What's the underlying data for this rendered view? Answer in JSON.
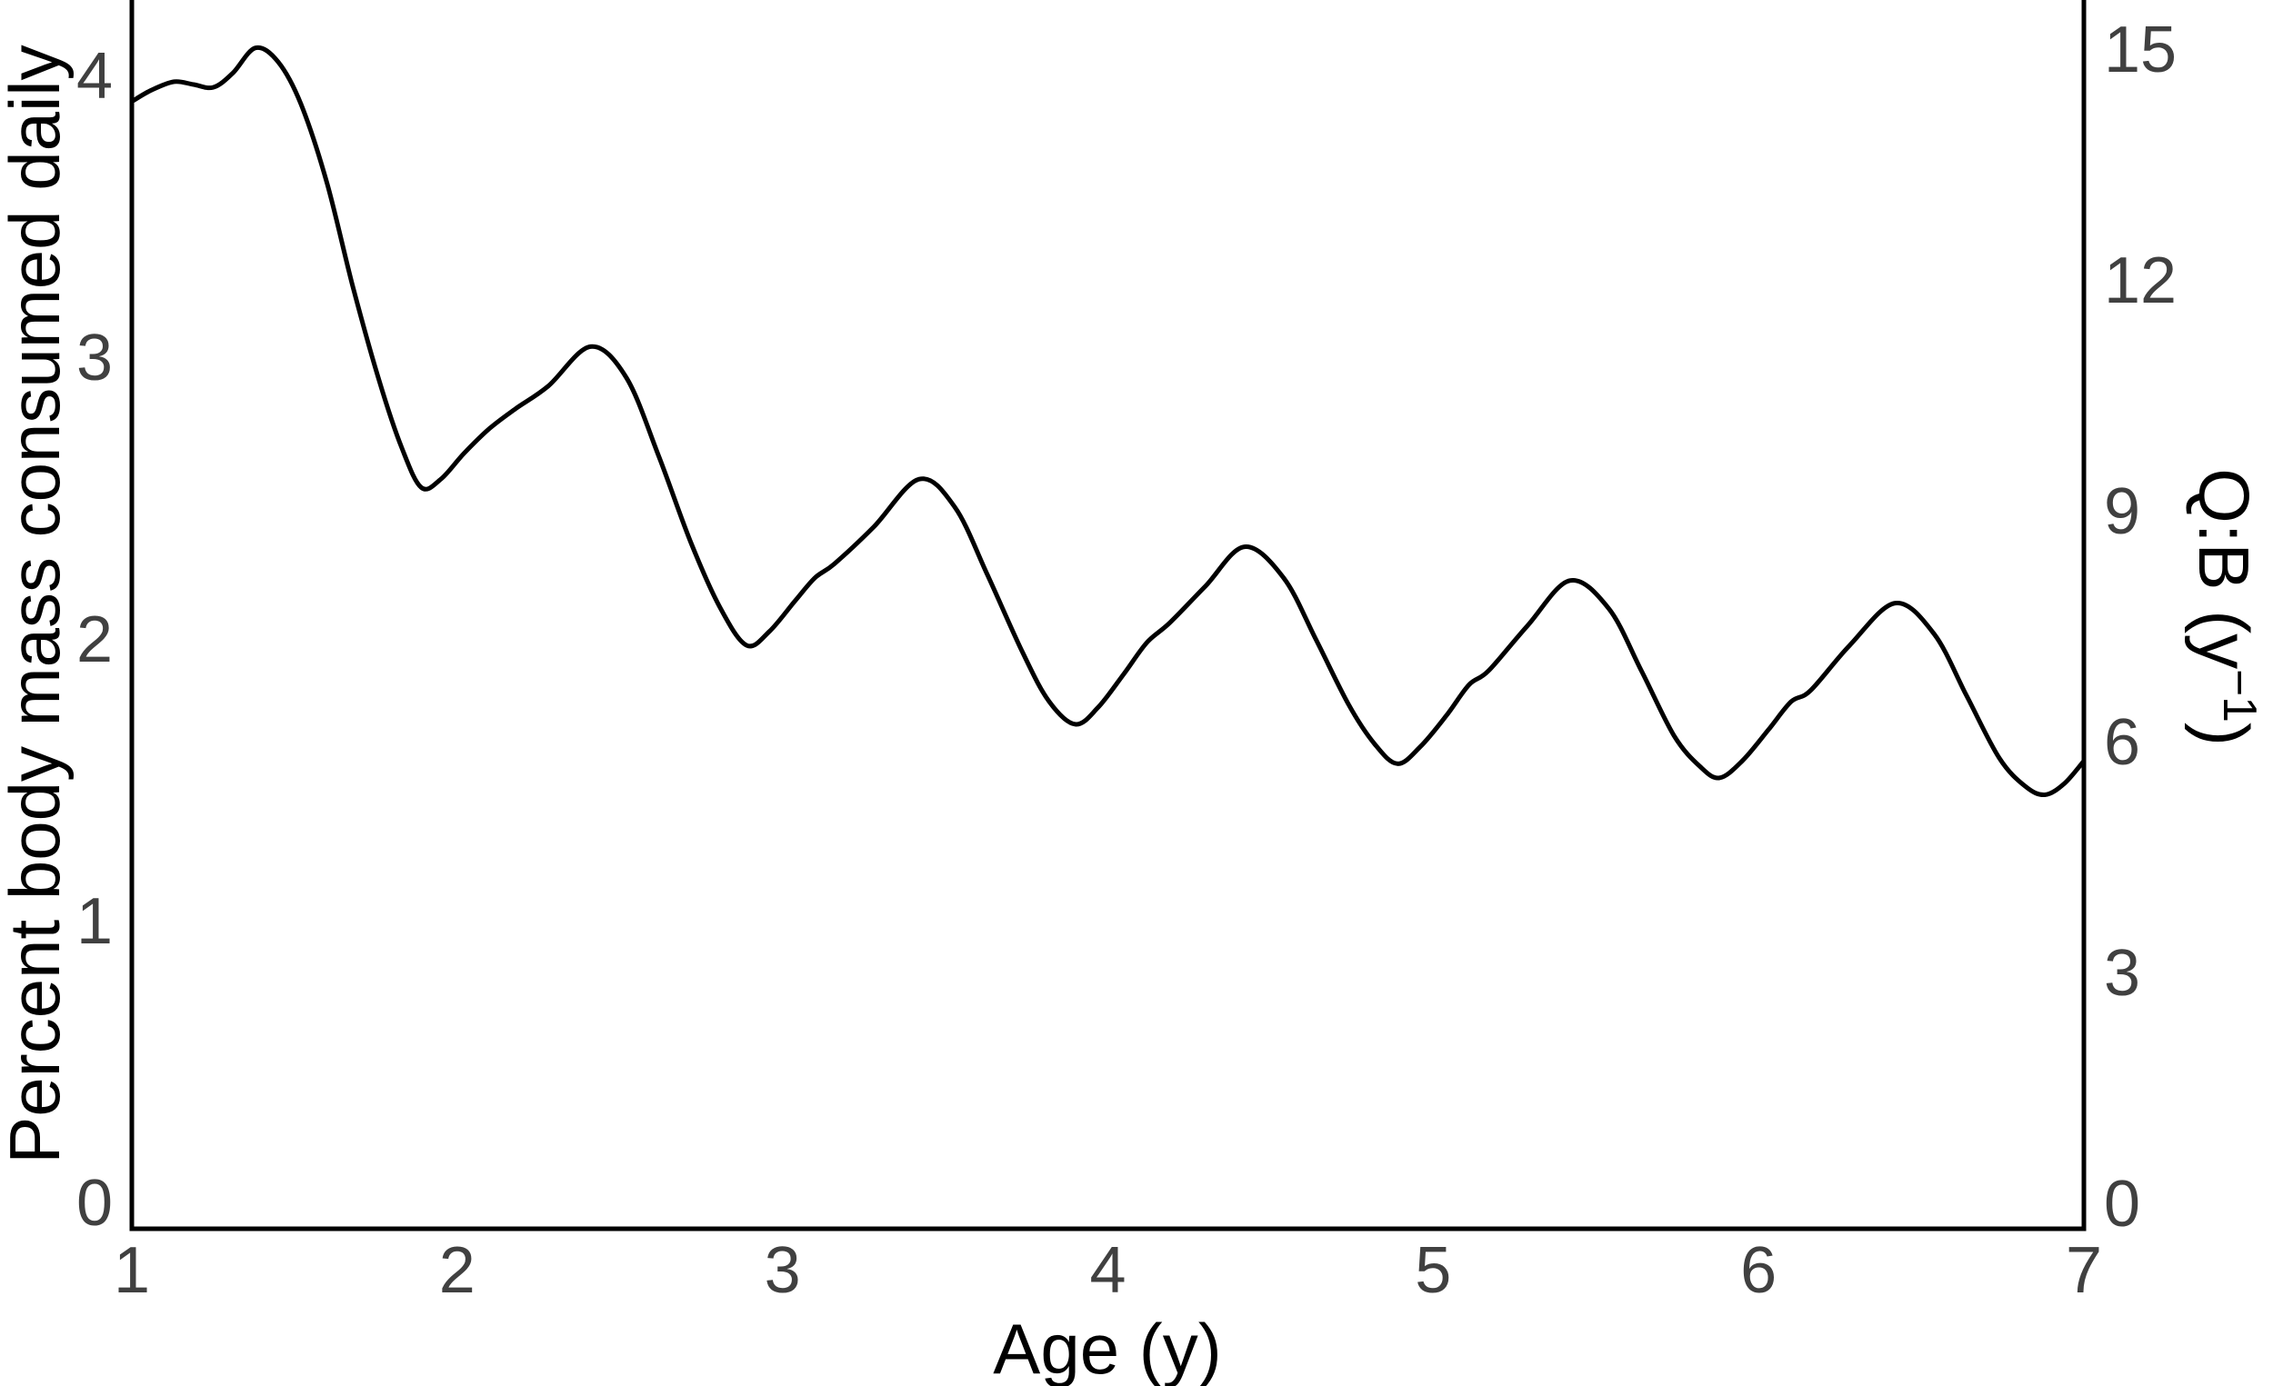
{
  "figure": {
    "background_color": "#ffffff",
    "axis_color": "#000000",
    "curve_color": "#000000",
    "tick_label_color": "#404040",
    "axis_label_color": "#000000"
  },
  "chart_data": {
    "type": "line",
    "title": "",
    "xlabel": "Age (y)",
    "ylabel_left": "Percent body mass consumed daily",
    "ylabel_right_parts": {
      "pre": "Q:B (y",
      "sup": "−1",
      "post": ")"
    },
    "xlim": [
      1,
      7
    ],
    "ylim_left": [
      -0.09,
      4.27
    ],
    "ylim_right": [
      -0.32,
      15.65
    ],
    "x_ticks": [
      1,
      2,
      3,
      4,
      5,
      6,
      7
    ],
    "y_ticks_left": [
      0,
      1,
      2,
      3,
      4
    ],
    "y_ticks_right": [
      0,
      3,
      6,
      9,
      12,
      15
    ],
    "grid": false,
    "legend": false,
    "series": [
      {
        "axis": "left",
        "x": [
          1.0,
          1.06,
          1.13,
          1.19,
          1.25,
          1.31,
          1.38,
          1.45,
          1.52,
          1.6,
          1.68,
          1.76,
          1.83,
          1.89,
          1.95,
          2.02,
          2.1,
          2.18,
          2.28,
          2.41,
          2.52,
          2.62,
          2.72,
          2.81,
          2.89,
          2.96,
          3.04,
          3.1,
          3.16,
          3.28,
          3.42,
          3.53,
          3.63,
          3.74,
          3.82,
          3.9,
          3.97,
          4.05,
          4.12,
          4.19,
          4.3,
          4.42,
          4.54,
          4.64,
          4.74,
          4.82,
          4.89,
          4.96,
          5.04,
          5.11,
          5.17,
          5.29,
          5.42,
          5.54,
          5.64,
          5.74,
          5.82,
          5.88,
          5.95,
          6.03,
          6.1,
          6.16,
          6.28,
          6.42,
          6.54,
          6.64,
          6.74,
          6.82,
          6.88,
          6.94,
          7.0
        ],
        "y": [
          3.91,
          3.95,
          3.98,
          3.97,
          3.96,
          4.01,
          4.1,
          4.05,
          3.9,
          3.62,
          3.25,
          2.92,
          2.68,
          2.54,
          2.57,
          2.66,
          2.75,
          2.82,
          2.9,
          3.04,
          2.93,
          2.65,
          2.34,
          2.11,
          1.98,
          2.03,
          2.14,
          2.22,
          2.27,
          2.4,
          2.57,
          2.47,
          2.23,
          1.95,
          1.78,
          1.7,
          1.76,
          1.88,
          1.99,
          2.06,
          2.19,
          2.33,
          2.22,
          2.0,
          1.77,
          1.63,
          1.56,
          1.62,
          1.73,
          1.84,
          1.89,
          2.05,
          2.21,
          2.11,
          1.89,
          1.66,
          1.55,
          1.51,
          1.57,
          1.68,
          1.78,
          1.82,
          1.98,
          2.13,
          2.02,
          1.8,
          1.58,
          1.48,
          1.45,
          1.49,
          1.57
        ]
      }
    ]
  }
}
